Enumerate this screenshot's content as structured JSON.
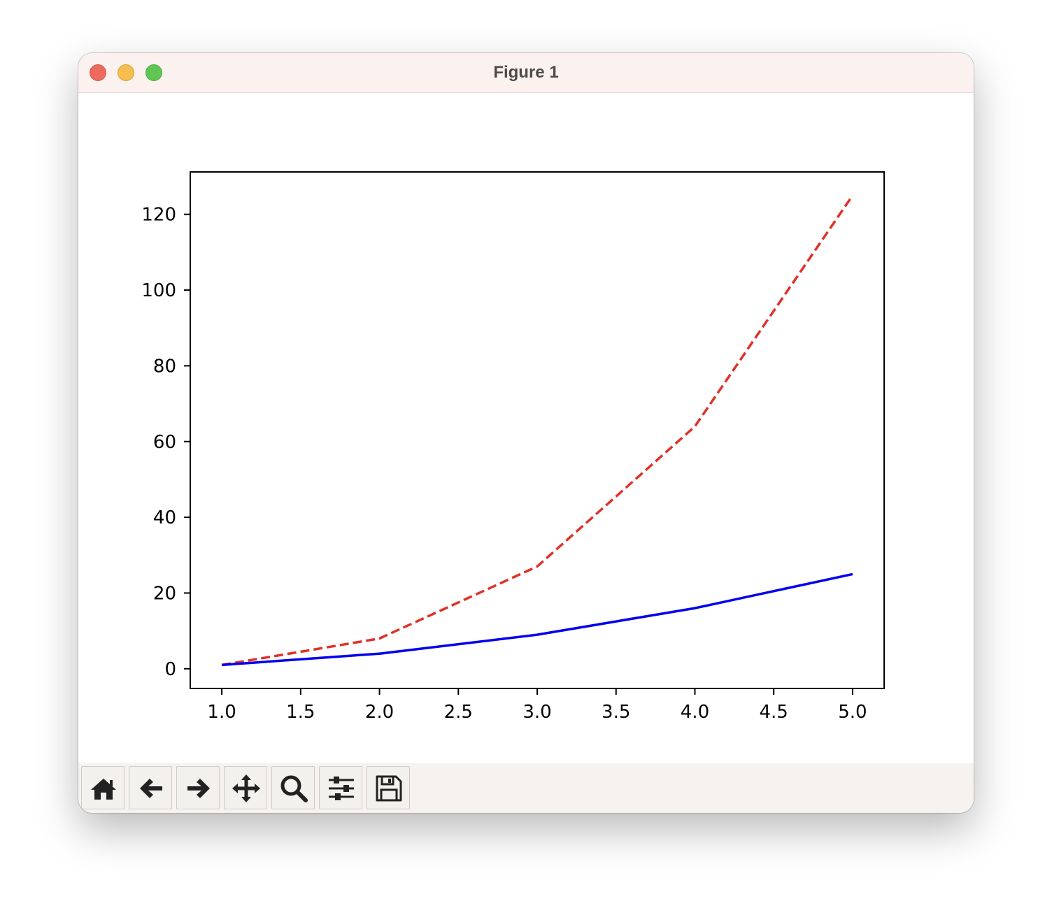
{
  "window": {
    "title": "Figure 1"
  },
  "toolbar": {
    "buttons": [
      {
        "name": "home-button",
        "icon": "home-icon"
      },
      {
        "name": "back-button",
        "icon": "arrow-left-icon"
      },
      {
        "name": "forward-button",
        "icon": "arrow-right-icon"
      },
      {
        "name": "pan-button",
        "icon": "move-icon"
      },
      {
        "name": "zoom-button",
        "icon": "search-icon"
      },
      {
        "name": "configure-subplots-button",
        "icon": "sliders-icon"
      },
      {
        "name": "save-button",
        "icon": "floppy-disk-icon"
      }
    ]
  },
  "chart_data": {
    "type": "line",
    "title": "",
    "xlabel": "",
    "ylabel": "",
    "xlim": [
      0.8,
      5.2
    ],
    "ylim": [
      -5.2,
      131.2
    ],
    "xticks": [
      "1.0",
      "1.5",
      "2.0",
      "2.5",
      "3.0",
      "3.5",
      "4.0",
      "4.5",
      "5.0"
    ],
    "yticks": [
      "0",
      "20",
      "40",
      "60",
      "80",
      "100",
      "120"
    ],
    "grid": false,
    "x": [
      1,
      2,
      3,
      4,
      5
    ],
    "series": [
      {
        "values": [
          1,
          8,
          27,
          64,
          125
        ],
        "color": "#e0312a",
        "style": "dashed"
      },
      {
        "values": [
          1,
          4,
          9,
          16,
          25
        ],
        "color": "#0000ee",
        "style": "solid"
      }
    ]
  }
}
